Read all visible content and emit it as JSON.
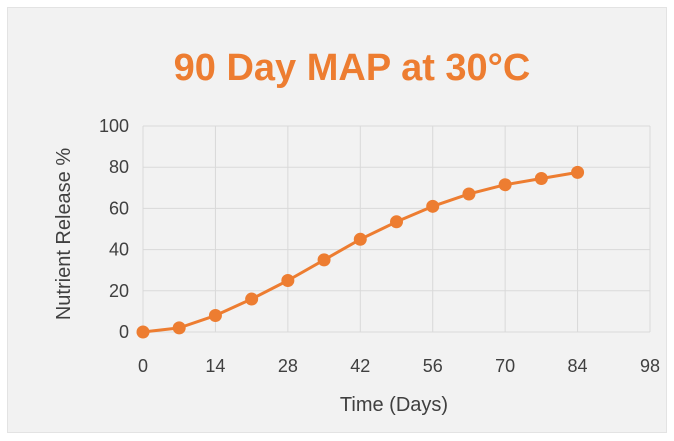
{
  "chart_data": {
    "type": "line",
    "title": "90 Day MAP at 30°C",
    "xlabel": "Time (Days)",
    "ylabel": "Nutrient Release %",
    "xlim": [
      0,
      98
    ],
    "ylim": [
      0,
      100
    ],
    "xticks": [
      0,
      14,
      28,
      42,
      56,
      70,
      84,
      98
    ],
    "yticks": [
      0,
      20,
      40,
      60,
      80,
      100
    ],
    "grid": true,
    "legend": "none",
    "series": [
      {
        "x": [
          0,
          7,
          14,
          21,
          28,
          35,
          42,
          49,
          56,
          63,
          70,
          77,
          84
        ],
        "values": [
          0,
          2,
          8,
          16,
          25,
          35,
          45,
          53.5,
          61,
          67,
          71.5,
          74.5,
          77.5
        ]
      }
    ],
    "colors": {
      "title": "#ED7D31",
      "line": "#ED7D31",
      "grid": "#d9d9d9",
      "background": "#f2f2f2"
    }
  }
}
